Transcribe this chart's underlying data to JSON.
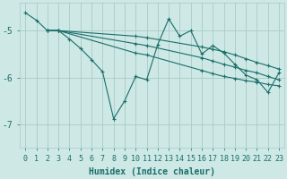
{
  "xlabel": "Humidex (Indice chaleur)",
  "background_color": "#cde8e5",
  "grid_color": "#a8ccc9",
  "line_color": "#1a6e6a",
  "xlim": [
    -0.5,
    23.5
  ],
  "ylim": [
    -7.5,
    -4.4
  ],
  "yticks": [
    -7,
    -6,
    -5
  ],
  "xticks": [
    0,
    1,
    2,
    3,
    4,
    5,
    6,
    7,
    8,
    9,
    10,
    11,
    12,
    13,
    14,
    15,
    16,
    17,
    18,
    19,
    20,
    21,
    22,
    23
  ],
  "lines": [
    {
      "x": [
        0,
        1,
        2,
        3,
        4,
        5,
        6,
        7,
        8,
        9,
        10,
        11,
        12,
        13,
        14,
        15,
        16,
        17,
        18,
        19,
        20,
        21,
        22,
        23
      ],
      "y": [
        -4.62,
        -4.78,
        -5.0,
        -5.0,
        -5.18,
        -5.38,
        -5.62,
        -5.88,
        -6.88,
        -6.5,
        -5.98,
        -6.05,
        -5.3,
        -4.75,
        -5.12,
        -5.0,
        -5.5,
        -5.32,
        -5.48,
        -5.72,
        -5.95,
        -6.05,
        -6.32,
        -5.9
      ]
    },
    {
      "x": [
        2,
        3,
        10,
        11,
        16,
        17,
        18,
        19,
        20,
        21,
        22,
        23
      ],
      "y": [
        -5.0,
        -5.0,
        -5.12,
        -5.15,
        -5.35,
        -5.4,
        -5.45,
        -5.52,
        -5.6,
        -5.68,
        -5.75,
        -5.82
      ]
    },
    {
      "x": [
        2,
        3,
        10,
        11,
        16,
        17,
        18,
        19,
        20,
        21,
        22,
        23
      ],
      "y": [
        -5.0,
        -5.0,
        -5.28,
        -5.32,
        -5.58,
        -5.65,
        -5.72,
        -5.78,
        -5.85,
        -5.9,
        -5.98,
        -6.05
      ]
    },
    {
      "x": [
        2,
        3,
        10,
        11,
        16,
        17,
        18,
        19,
        20,
        21,
        22,
        23
      ],
      "y": [
        -5.0,
        -5.0,
        -5.48,
        -5.52,
        -5.85,
        -5.92,
        -5.98,
        -6.02,
        -6.07,
        -6.1,
        -6.15,
        -6.18
      ]
    }
  ],
  "axis_fontsize": 7,
  "tick_fontsize": 6
}
